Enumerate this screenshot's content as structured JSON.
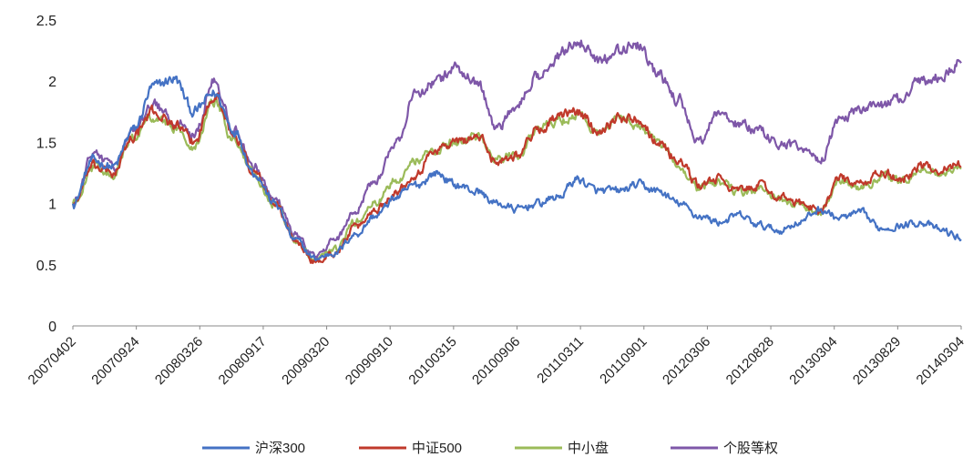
{
  "chart_data": {
    "type": "line",
    "title": "",
    "xlabel": "",
    "ylabel": "",
    "ylim": [
      0,
      2.5
    ],
    "yticks": [
      "0",
      "0.5",
      "1",
      "1.5",
      "2",
      "2.5"
    ],
    "x_tick_labels": [
      "20070402",
      "20070924",
      "20080326",
      "20080917",
      "20090320",
      "20090910",
      "20100315",
      "20100906",
      "20110311",
      "20110901",
      "20120306",
      "20120828",
      "20130304",
      "20130829",
      "20140304"
    ],
    "grid": false,
    "legend_position": "bottom",
    "series": [
      {
        "name": "沪深300",
        "color": "#4472C4",
        "values": [
          1.0,
          1.35,
          1.3,
          1.6,
          1.95,
          2.02,
          1.75,
          1.9,
          1.6,
          1.25,
          1.0,
          0.7,
          0.55,
          0.6,
          0.75,
          0.9,
          1.05,
          1.15,
          1.25,
          1.15,
          1.1,
          1.0,
          0.95,
          1.0,
          1.05,
          1.2,
          1.1,
          1.1,
          1.15,
          1.1,
          1.0,
          0.9,
          0.85,
          0.9,
          0.82,
          0.78,
          0.85,
          0.95,
          0.88,
          0.92,
          0.8,
          0.82,
          0.85,
          0.78,
          0.72
        ]
      },
      {
        "name": "中证500",
        "color": "#C0392B",
        "values": [
          1.0,
          1.3,
          1.25,
          1.55,
          1.75,
          1.65,
          1.5,
          1.9,
          1.55,
          1.25,
          1.0,
          0.7,
          0.52,
          0.6,
          0.8,
          0.95,
          1.1,
          1.25,
          1.45,
          1.5,
          1.55,
          1.35,
          1.4,
          1.6,
          1.7,
          1.75,
          1.6,
          1.7,
          1.7,
          1.5,
          1.35,
          1.15,
          1.2,
          1.1,
          1.15,
          1.05,
          1.0,
          0.95,
          1.2,
          1.15,
          1.25,
          1.2,
          1.3,
          1.28,
          1.32
        ]
      },
      {
        "name": "中小盘",
        "color": "#9BBB59",
        "values": [
          1.0,
          1.3,
          1.25,
          1.55,
          1.72,
          1.62,
          1.48,
          1.85,
          1.52,
          1.22,
          1.0,
          0.7,
          0.53,
          0.62,
          0.85,
          1.0,
          1.2,
          1.35,
          1.45,
          1.5,
          1.55,
          1.35,
          1.4,
          1.6,
          1.68,
          1.72,
          1.6,
          1.68,
          1.65,
          1.48,
          1.32,
          1.12,
          1.18,
          1.08,
          1.12,
          1.03,
          0.98,
          0.92,
          1.18,
          1.12,
          1.22,
          1.18,
          1.27,
          1.25,
          1.28
        ]
      },
      {
        "name": "个股等权",
        "color": "#7E57A8",
        "values": [
          1.0,
          1.4,
          1.3,
          1.6,
          1.8,
          1.7,
          1.55,
          2.0,
          1.6,
          1.3,
          1.05,
          0.75,
          0.57,
          0.7,
          0.95,
          1.2,
          1.5,
          1.9,
          2.0,
          2.1,
          2.0,
          1.6,
          1.8,
          2.05,
          2.2,
          2.35,
          2.15,
          2.25,
          2.3,
          2.05,
          1.85,
          1.5,
          1.75,
          1.65,
          1.6,
          1.5,
          1.45,
          1.35,
          1.7,
          1.75,
          1.8,
          1.85,
          2.0,
          2.05,
          2.15
        ]
      }
    ]
  }
}
